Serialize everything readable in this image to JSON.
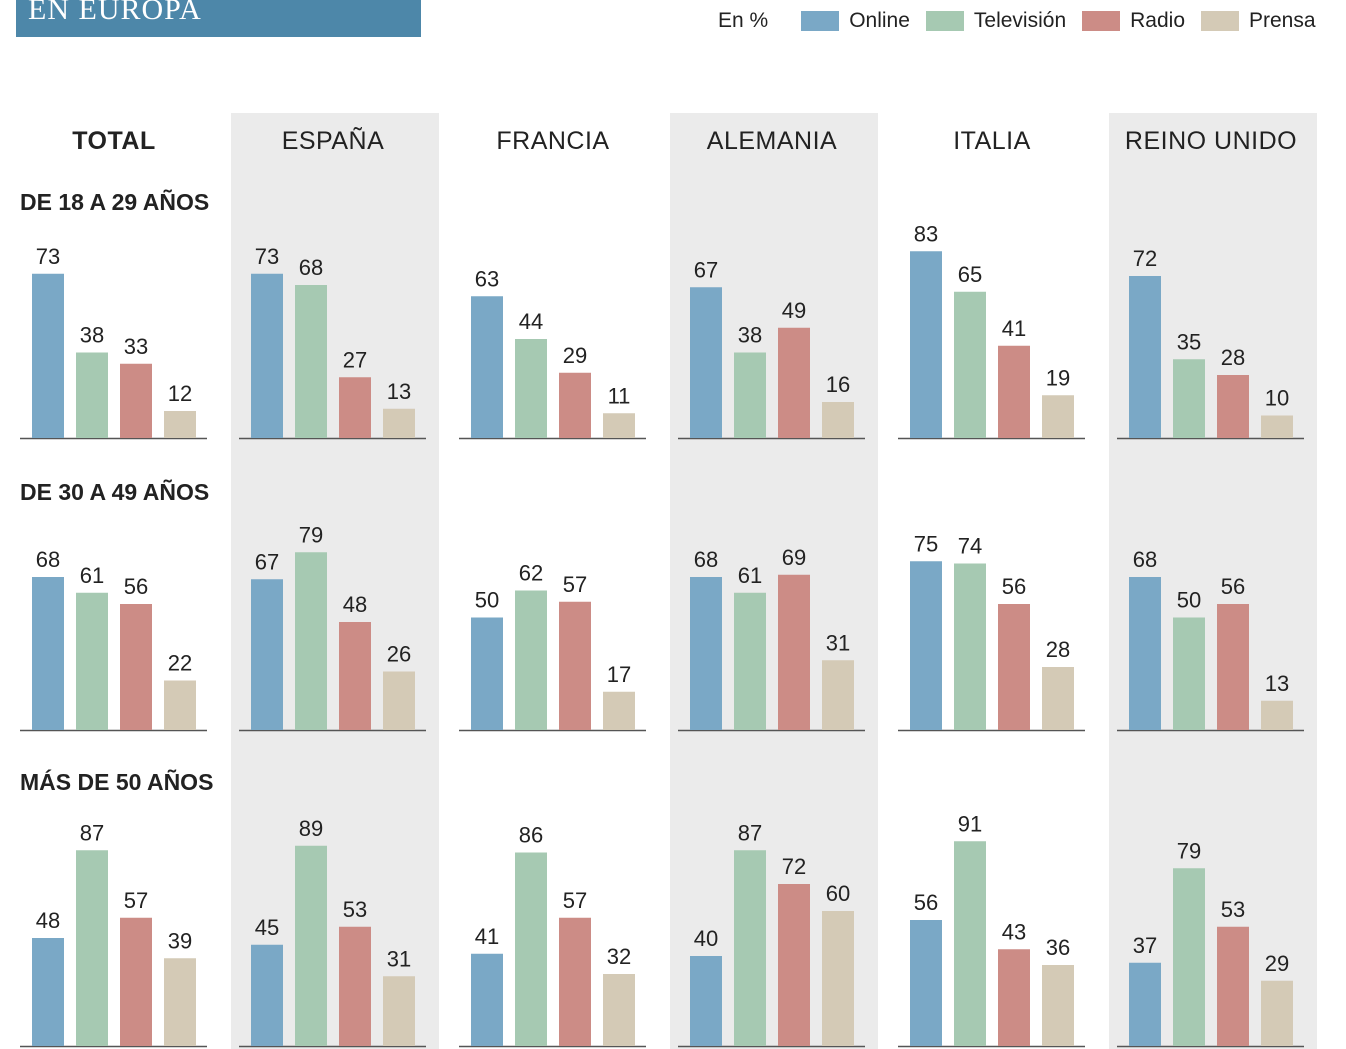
{
  "header": {
    "title": "EN EUROPA"
  },
  "legend": {
    "unit": "En %",
    "items": [
      {
        "label": "Online",
        "color": "#7aa8c6"
      },
      {
        "label": "Televisión",
        "color": "#a6c9b2"
      },
      {
        "label": "Radio",
        "color": "#cc8c86"
      },
      {
        "label": "Prensa",
        "color": "#d4cab6"
      }
    ]
  },
  "chart_data": {
    "type": "bar",
    "unit": "En %",
    "series_names": [
      "Online",
      "Televisión",
      "Radio",
      "Prensa"
    ],
    "colors": [
      "#7aa8c6",
      "#a6c9b2",
      "#cc8c86",
      "#d4cab6"
    ],
    "countries": [
      "TOTAL",
      "ESPAÑA",
      "FRANCIA",
      "ALEMANIA",
      "ITALIA",
      "REINO UNIDO"
    ],
    "age_groups": [
      "DE 18 A 29 AÑOS",
      "DE 30 A 49 AÑOS",
      "MÁS DE 50 AÑOS"
    ],
    "values": [
      [
        [
          73,
          38,
          33,
          12
        ],
        [
          73,
          68,
          27,
          13
        ],
        [
          63,
          44,
          29,
          11
        ],
        [
          67,
          38,
          49,
          16
        ],
        [
          83,
          65,
          41,
          19
        ],
        [
          72,
          35,
          28,
          10
        ]
      ],
      [
        [
          68,
          61,
          56,
          22
        ],
        [
          67,
          79,
          48,
          26
        ],
        [
          50,
          62,
          57,
          17
        ],
        [
          68,
          61,
          69,
          31
        ],
        [
          75,
          74,
          56,
          28
        ],
        [
          68,
          50,
          56,
          13
        ]
      ],
      [
        [
          48,
          87,
          57,
          39
        ],
        [
          45,
          89,
          53,
          31
        ],
        [
          41,
          86,
          57,
          32
        ],
        [
          40,
          87,
          72,
          60
        ],
        [
          56,
          91,
          43,
          36
        ],
        [
          37,
          79,
          53,
          29
        ]
      ]
    ]
  }
}
